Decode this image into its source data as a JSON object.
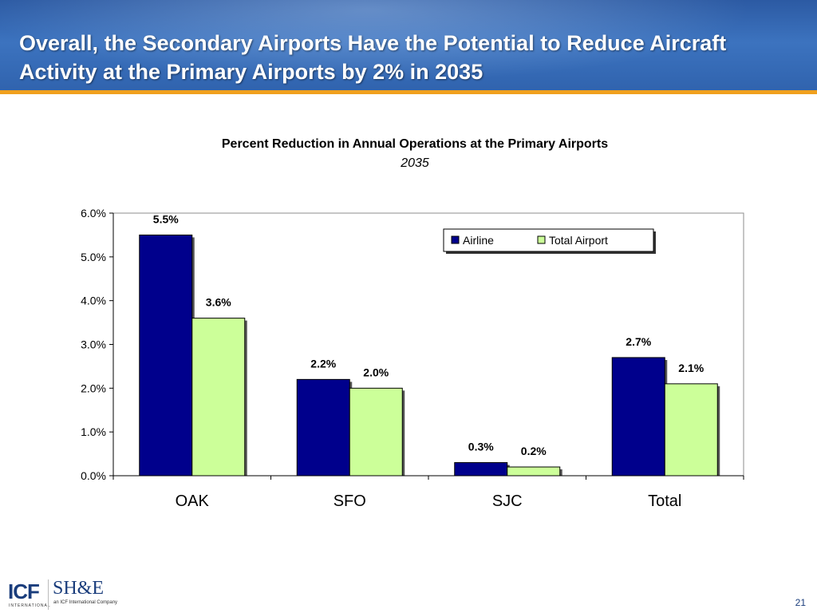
{
  "header": {
    "title": "Overall, the Secondary Airports Have the Potential to Reduce Aircraft Activity at the Primary Airports by 2% in 2035"
  },
  "chart_data": {
    "type": "bar",
    "title": "Percent Reduction in Annual Operations at the Primary Airports",
    "subtitle": "2035",
    "categories": [
      "OAK",
      "SFO",
      "SJC",
      "Total"
    ],
    "series": [
      {
        "name": "Airline",
        "values": [
          5.5,
          2.2,
          0.3,
          2.7
        ],
        "labels": [
          "5.5%",
          "2.2%",
          "0.3%",
          "2.7%"
        ],
        "color": "#00008c"
      },
      {
        "name": "Total Airport",
        "values": [
          3.6,
          2.0,
          0.2,
          2.1
        ],
        "labels": [
          "3.6%",
          "2.0%",
          "0.2%",
          "2.1%"
        ],
        "color": "#ccff99"
      }
    ],
    "yticks": [
      "0.0%",
      "1.0%",
      "2.0%",
      "3.0%",
      "4.0%",
      "5.0%",
      "6.0%"
    ],
    "ylim": [
      0,
      6
    ],
    "legend_position": "top-right",
    "grid": false
  },
  "footer": {
    "logo_icf": "ICF",
    "logo_icf_sub": "INTERNATIONAL",
    "logo_she": "SH&E",
    "logo_she_sub": "an ICF International Company",
    "page_number": "21"
  },
  "colors": {
    "header_blue": "#2c5aa3",
    "accent_orange": "#f0a01e"
  }
}
